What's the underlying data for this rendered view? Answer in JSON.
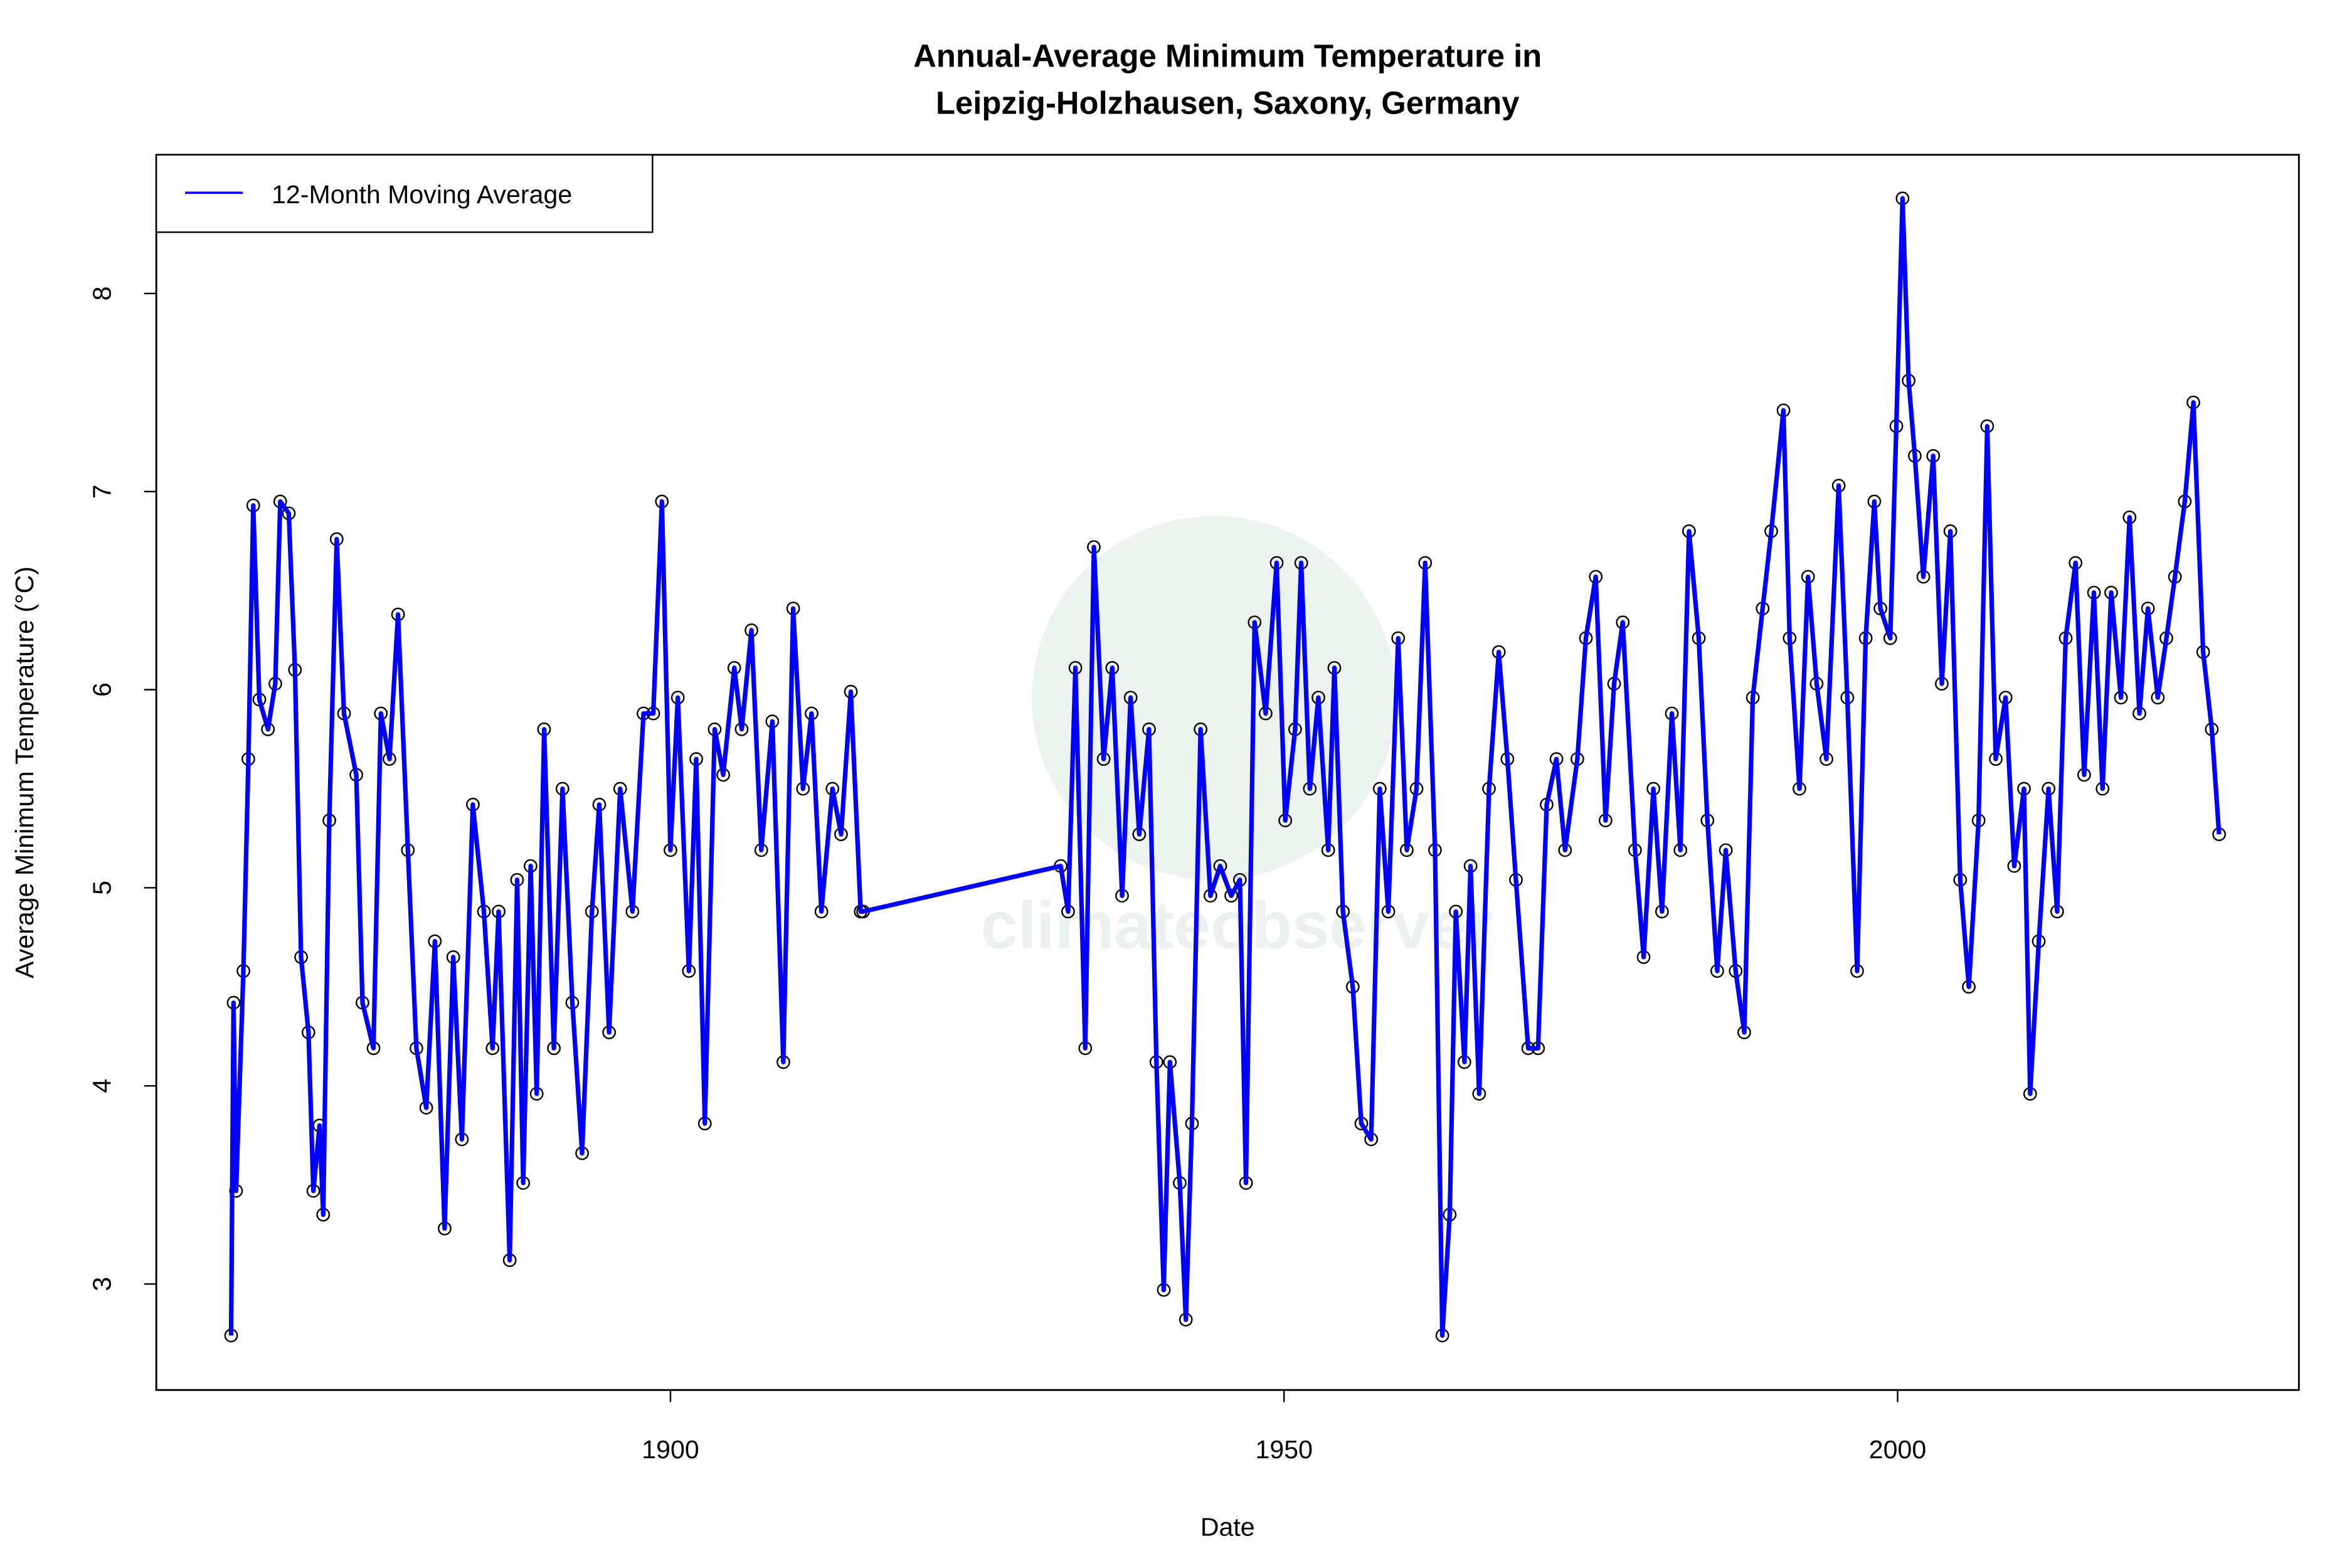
{
  "chart_data": {
    "type": "line",
    "title": "Annual-Average Minimum Temperature in\nLeipzig-Holzhausen, Saxony, Germany",
    "title_lines": [
      "Annual-Average Minimum Temperature in",
      "Leipzig-Holzhausen, Saxony, Germany"
    ],
    "xlabel": "Date",
    "ylabel": "Average Minimum Temperature (°C)",
    "xlim": [
      1858.1,
      2032.7
    ],
    "ylim": [
      2.465,
      8.7
    ],
    "xticks": [
      1900,
      1950,
      2000
    ],
    "yticks": [
      3,
      4,
      5,
      6,
      7,
      8
    ],
    "grid": false,
    "legend_position": "top-left",
    "watermark": "climateobserver www.climateobserver.co",
    "series": [
      {
        "name": "12-Month Moving Average",
        "color": "#0000ff",
        "marker": "open-circle",
        "x": [
          1864.2,
          1864.4,
          1864.6,
          1865.2,
          1865.6,
          1866.0,
          1866.5,
          1867.2,
          1867.8,
          1868.2,
          1868.9,
          1869.4,
          1869.9,
          1870.5,
          1870.9,
          1871.4,
          1871.7,
          1872.2,
          1872.8,
          1873.4,
          1874.4,
          1874.9,
          1875.8,
          1876.4,
          1877.1,
          1877.8,
          1878.6,
          1879.3,
          1880.1,
          1880.8,
          1881.6,
          1882.3,
          1883.0,
          1883.9,
          1884.8,
          1885.5,
          1886.0,
          1886.9,
          1887.5,
          1888.0,
          1888.6,
          1889.1,
          1889.7,
          1890.5,
          1891.2,
          1892.0,
          1892.8,
          1893.6,
          1894.2,
          1895.0,
          1895.9,
          1896.9,
          1897.8,
          1898.6,
          1899.3,
          1900.0,
          1900.6,
          1901.5,
          1902.1,
          1902.8,
          1903.6,
          1904.3,
          1905.2,
          1905.8,
          1906.6,
          1907.4,
          1908.3,
          1909.2,
          1910.0,
          1910.8,
          1911.5,
          1912.3,
          1913.2,
          1913.9,
          1914.7,
          1915.5,
          1915.7,
          1931.8,
          1932.4,
          1933.0,
          1933.8,
          1934.5,
          1935.3,
          1936.0,
          1936.8,
          1937.5,
          1938.2,
          1939.0,
          1939.6,
          1940.2,
          1940.7,
          1941.5,
          1942.0,
          1942.5,
          1943.2,
          1944.0,
          1944.8,
          1945.7,
          1946.4,
          1946.9,
          1947.6,
          1948.5,
          1949.4,
          1950.1,
          1950.9,
          1951.4,
          1952.1,
          1952.8,
          1953.6,
          1954.1,
          1954.8,
          1955.6,
          1956.3,
          1957.1,
          1957.8,
          1958.5,
          1959.3,
          1960.0,
          1960.8,
          1961.5,
          1962.3,
          1962.9,
          1963.5,
          1964.0,
          1964.7,
          1965.2,
          1965.9,
          1966.7,
          1967.5,
          1968.2,
          1968.9,
          1969.9,
          1970.7,
          1971.4,
          1972.2,
          1972.9,
          1973.9,
          1974.6,
          1975.4,
          1976.2,
          1976.9,
          1977.6,
          1978.6,
          1979.3,
          1980.1,
          1980.8,
          1981.6,
          1982.3,
          1983.0,
          1983.8,
          1984.5,
          1985.3,
          1986.0,
          1986.8,
          1987.5,
          1988.2,
          1989.0,
          1989.7,
          1990.7,
          1991.2,
          1992.0,
          1992.7,
          1993.4,
          1994.2,
          1995.2,
          1995.9,
          1996.7,
          1997.4,
          1998.1,
          1998.6,
          1999.4,
          1999.9,
          2000.4,
          2000.9,
          2001.4,
          2002.1,
          2002.9,
          2003.6,
          2004.3,
          2005.1,
          2005.8,
          2006.6,
          2007.3,
          2008.0,
          2008.8,
          2009.5,
          2010.3,
          2010.8,
          2011.5,
          2012.3,
          2013.0,
          2013.7,
          2014.5,
          2015.2,
          2016.0,
          2016.7,
          2017.4,
          2018.2,
          2018.9,
          2019.7,
          2020.4,
          2021.2,
          2021.9,
          2022.6,
          2023.4,
          2024.1,
          2024.9,
          2025.6,
          2026.2
        ],
        "y": [
          2.74,
          4.42,
          3.47,
          4.58,
          5.65,
          6.93,
          5.95,
          5.8,
          6.03,
          6.95,
          6.89,
          6.1,
          4.65,
          4.27,
          3.47,
          3.8,
          3.35,
          5.34,
          6.76,
          5.88,
          5.57,
          4.42,
          4.19,
          5.88,
          5.65,
          6.38,
          5.19,
          4.19,
          3.89,
          4.73,
          3.28,
          4.65,
          3.73,
          5.42,
          4.88,
          4.19,
          4.88,
          3.12,
          5.04,
          3.51,
          5.11,
          3.96,
          5.8,
          4.19,
          5.5,
          4.42,
          3.66,
          4.88,
          5.42,
          4.27,
          5.5,
          4.88,
          5.88,
          5.88,
          6.95,
          5.19,
          5.96,
          4.58,
          5.65,
          3.81,
          5.8,
          5.57,
          6.11,
          5.8,
          6.3,
          5.19,
          5.84,
          4.12,
          6.41,
          5.5,
          5.88,
          4.88,
          5.5,
          5.27,
          5.99,
          4.88,
          4.88,
          5.11,
          4.88,
          6.11,
          4.19,
          6.72,
          5.65,
          6.11,
          4.96,
          5.96,
          5.27,
          5.8,
          4.12,
          2.97,
          4.12,
          3.51,
          2.82,
          3.81,
          5.8,
          4.96,
          5.11,
          4.96,
          5.04,
          3.51,
          6.34,
          5.88,
          6.64,
          5.34,
          5.8,
          6.64,
          5.5,
          5.96,
          5.19,
          6.11,
          4.88,
          4.5,
          3.81,
          3.73,
          5.5,
          4.88,
          6.26,
          5.19,
          5.5,
          6.64,
          5.19,
          2.74,
          3.35,
          4.88,
          4.12,
          5.11,
          3.96,
          5.5,
          6.19,
          5.65,
          5.04,
          4.19,
          4.19,
          5.42,
          5.65,
          5.19,
          5.65,
          6.26,
          6.57,
          5.34,
          6.03,
          6.34,
          5.19,
          4.65,
          5.5,
          4.88,
          5.88,
          5.19,
          6.8,
          6.26,
          5.34,
          4.58,
          5.19,
          4.58,
          4.27,
          5.96,
          6.41,
          6.8,
          7.41,
          6.26,
          5.5,
          6.57,
          6.03,
          5.65,
          7.03,
          5.96,
          4.58,
          6.26,
          6.95,
          6.41,
          6.26,
          7.33,
          8.48,
          7.56,
          7.18,
          6.57,
          7.18,
          6.03,
          6.8,
          5.04,
          4.5,
          5.34,
          7.33,
          5.65,
          5.96,
          5.11,
          5.5,
          3.96,
          4.73,
          5.5,
          4.88,
          6.26,
          6.64,
          5.57,
          6.49,
          5.5,
          6.49,
          5.96,
          6.87,
          5.88,
          6.41,
          5.96,
          6.26,
          6.57,
          6.95,
          7.45,
          6.19,
          5.8,
          5.27
        ]
      }
    ]
  }
}
